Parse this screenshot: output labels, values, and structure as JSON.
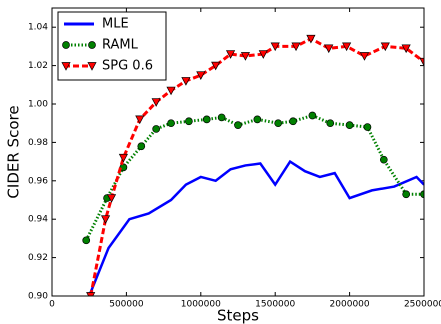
{
  "chart_data": {
    "type": "line",
    "xlabel": "Steps",
    "ylabel": "CIDER Score",
    "xlim": [
      0,
      2500000
    ],
    "xticks": [
      0,
      500000,
      1000000,
      1500000,
      2000000,
      2500000
    ],
    "ylim": [
      0.9,
      1.05
    ],
    "yticks": [
      {
        "value": 0.9,
        "label": "0.90"
      },
      0.92,
      0.94,
      0.96,
      0.98,
      {
        "value": 1.0,
        "label": "1.00"
      },
      1.02,
      1.04
    ],
    "legend": "upper left",
    "series": [
      {
        "name": "MLE",
        "color": "#0000ff",
        "style": "solid",
        "marker": "none",
        "x": [
          250000,
          380000,
          520000,
          650000,
          800000,
          900000,
          1000000,
          1100000,
          1200000,
          1300000,
          1400000,
          1500000,
          1600000,
          1700000,
          1800000,
          1900000,
          2000000,
          2150000,
          2300000,
          2450000,
          2500000
        ],
        "values": [
          0.9,
          0.925,
          0.94,
          0.943,
          0.95,
          0.958,
          0.962,
          0.96,
          0.966,
          0.968,
          0.969,
          0.958,
          0.97,
          0.965,
          0.962,
          0.964,
          0.951,
          0.955,
          0.957,
          0.962,
          0.958
        ]
      },
      {
        "name": "RAML",
        "color": "#008000",
        "style": "dotted",
        "marker": "circle",
        "x": [
          230000,
          370000,
          480000,
          600000,
          700000,
          800000,
          920000,
          1040000,
          1140000,
          1250000,
          1380000,
          1520000,
          1620000,
          1750000,
          1870000,
          2000000,
          2120000,
          2230000,
          2380000,
          2500000
        ],
        "values": [
          0.929,
          0.951,
          0.967,
          0.978,
          0.987,
          0.99,
          0.991,
          0.992,
          0.993,
          0.989,
          0.992,
          0.99,
          0.991,
          0.994,
          0.99,
          0.989,
          0.988,
          0.971,
          0.953,
          0.953
        ]
      },
      {
        "name": "SPG 0.6",
        "color": "#ff0000",
        "style": "dashed",
        "marker": "triangle-down",
        "x": [
          260000,
          360000,
          400000,
          480000,
          590000,
          700000,
          800000,
          900000,
          1000000,
          1100000,
          1200000,
          1300000,
          1420000,
          1500000,
          1640000,
          1740000,
          1860000,
          1980000,
          2100000,
          2240000,
          2380000,
          2500000
        ],
        "values": [
          0.9,
          0.94,
          0.951,
          0.972,
          0.992,
          1.001,
          1.007,
          1.012,
          1.015,
          1.02,
          1.026,
          1.025,
          1.026,
          1.03,
          1.03,
          1.034,
          1.029,
          1.03,
          1.025,
          1.03,
          1.029,
          1.022
        ]
      }
    ]
  }
}
